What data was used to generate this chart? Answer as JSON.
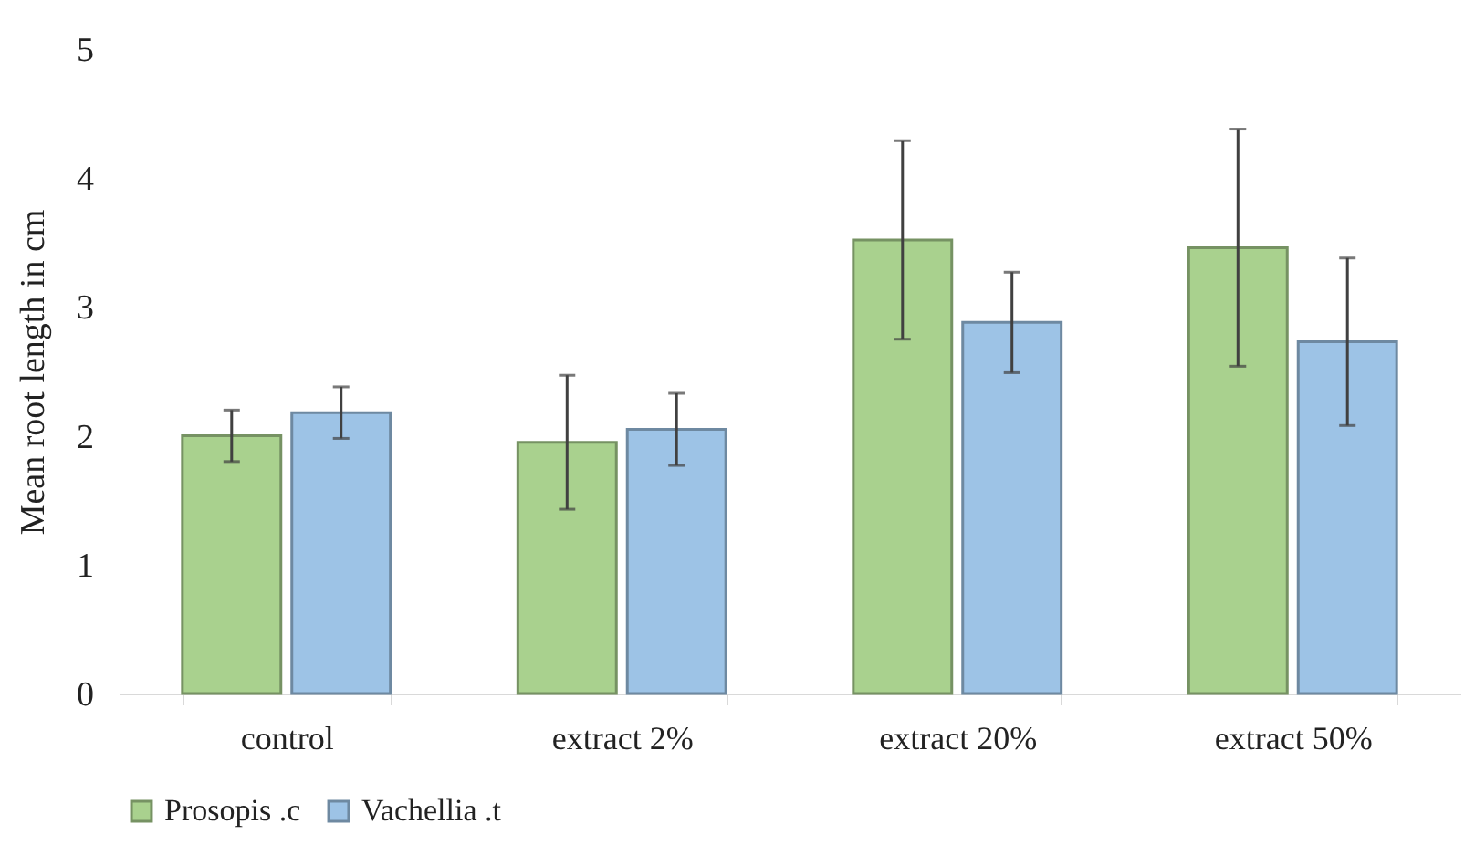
{
  "chart_data": {
    "type": "bar",
    "ylabel": "Mean root length in cm",
    "categories": [
      "control",
      "extract 2%",
      "extract 20%",
      "extract 50%"
    ],
    "series": [
      {
        "name": "Prosopis .c",
        "color": "#a9d18e",
        "values": [
          2.0,
          1.95,
          3.52,
          3.46
        ],
        "errors": [
          0.2,
          0.52,
          0.77,
          0.92
        ]
      },
      {
        "name": "Vachellia .t",
        "color": "#9dc3e6",
        "values": [
          2.18,
          2.05,
          2.88,
          2.73
        ],
        "errors": [
          0.2,
          0.28,
          0.39,
          0.65
        ]
      }
    ],
    "ylim": [
      0,
      5
    ],
    "yticks": [
      0,
      1,
      2,
      3,
      4,
      5
    ],
    "grid": false,
    "legend": "bottom"
  }
}
